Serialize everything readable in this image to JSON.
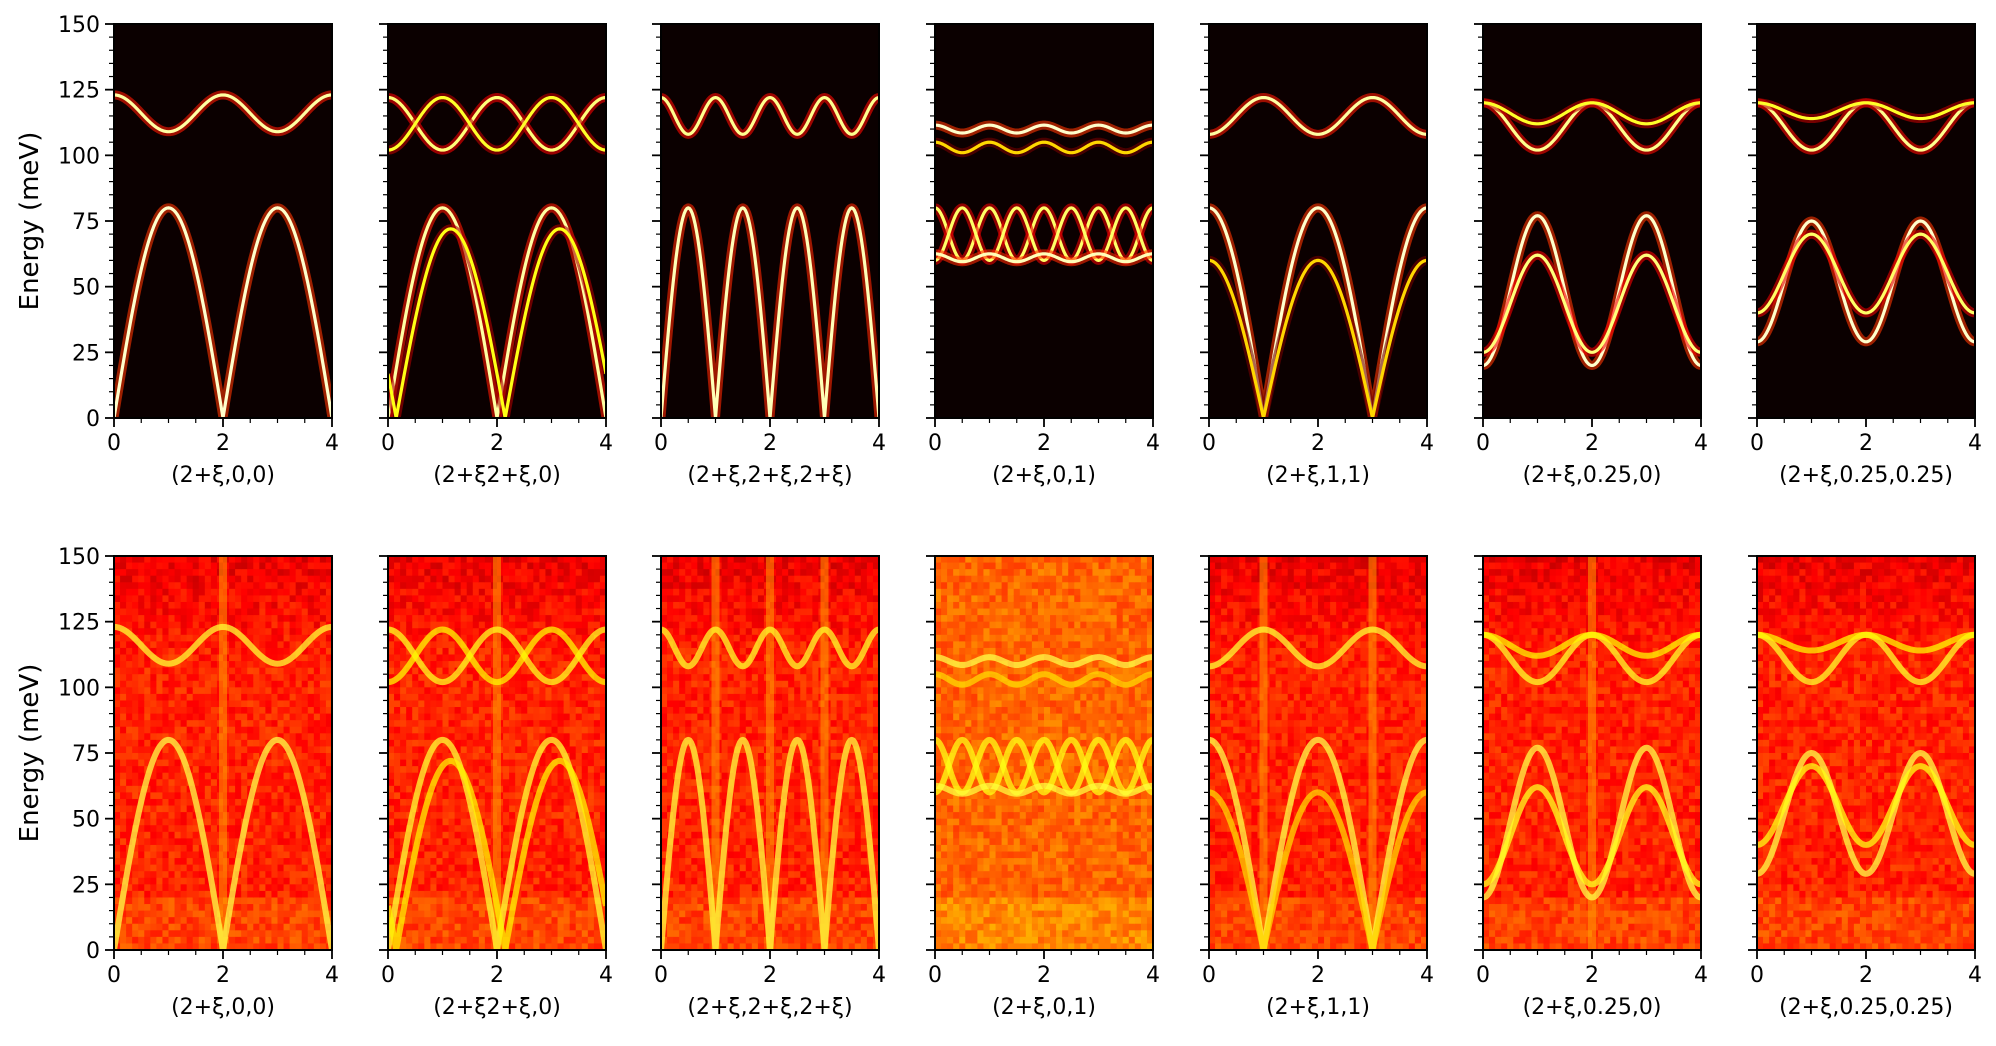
{
  "figure": {
    "ylabel": "Energy (meV)",
    "colors": {
      "background": "#0b0000",
      "mid": "#d21800",
      "hot": "#ff9a00",
      "peak": "#ffff60"
    }
  },
  "chart_data": {
    "type": "heatmap",
    "x_ticks": [
      "0",
      "2",
      "4"
    ],
    "y_ticks": [
      "0",
      "25",
      "50",
      "75",
      "100",
      "125",
      "150"
    ],
    "xlim": [
      0,
      4
    ],
    "ylim": [
      0,
      150
    ],
    "colormap": "hot",
    "rows": [
      {
        "kind": "simulated",
        "ylabel": "Energy (meV)"
      },
      {
        "kind": "measured",
        "ylabel": "Energy (meV)"
      }
    ],
    "panels": [
      {
        "xlabel": "(2+ξ,0,0)",
        "acoustic": [
          {
            "A": 80,
            "P": 2,
            "s": 0,
            "w": 1.0
          }
        ],
        "optical": [
          {
            "c": 116,
            "a": 7,
            "P": 2,
            "ph": 0,
            "w": 0.9
          }
        ],
        "vertical_lines": [
          2
        ]
      },
      {
        "xlabel": "(2+ξ2+ξ,0)",
        "acoustic": [
          {
            "A": 80,
            "P": 2,
            "s": 0,
            "w": 0.9
          },
          {
            "A": 72,
            "P": 2,
            "s": 0.15,
            "w": 0.55
          }
        ],
        "optical": [
          {
            "c": 112,
            "a": 10,
            "P": 2,
            "ph": 0,
            "w": 0.8
          },
          {
            "c": 112,
            "a": 10,
            "P": 2,
            "ph": 1,
            "w": 0.6
          }
        ],
        "vertical_lines": [
          2
        ]
      },
      {
        "xlabel": "(2+ξ,2+ξ,2+ξ)",
        "acoustic": [
          {
            "A": 80,
            "P": 1,
            "s": 0,
            "w": 0.95
          }
        ],
        "optical": [
          {
            "c": 115,
            "a": 7,
            "P": 1,
            "ph": 0,
            "w": 0.85
          }
        ],
        "vertical_lines": [
          1,
          2,
          3
        ]
      },
      {
        "xlabel": "(2+ξ,0,1)",
        "flat": [
          {
            "c": 110,
            "a": 1.5,
            "P": 1,
            "w": 1.0
          },
          {
            "c": 103,
            "a": 2,
            "P": 1,
            "w": 0.35
          },
          {
            "c": 61,
            "a": 1.5,
            "P": 1,
            "w": 0.95
          }
        ],
        "optical": [
          {
            "c": 70,
            "a": 10,
            "P": 1,
            "ph": 0,
            "w": 0.75
          },
          {
            "c": 70,
            "a": 10,
            "P": 1,
            "ph": 0.5,
            "w": 0.75
          }
        ],
        "vertical_lines": []
      },
      {
        "xlabel": "(2+ξ,1,1)",
        "acoustic": [
          {
            "A": 80,
            "P": 2,
            "s": 1,
            "w": 1.0
          },
          {
            "A": 60,
            "P": 2,
            "s": 1,
            "w": 0.35
          }
        ],
        "optical": [
          {
            "c": 115,
            "a": 7,
            "P": 2,
            "ph": 1,
            "w": 0.9
          }
        ],
        "vertical_lines": [
          1,
          3
        ]
      },
      {
        "xlabel": "(2+ξ,0.25,0)",
        "band": [
          {
            "lo": 20,
            "hi": 77,
            "w": 1.0
          },
          {
            "lo": 25,
            "hi": 62,
            "w": 0.8
          }
        ],
        "optical": [
          {
            "c": 111,
            "a": 9,
            "P": 2,
            "ph": 0,
            "w": 0.85
          },
          {
            "c": 116,
            "a": 4,
            "P": 2,
            "ph": 0,
            "w": 0.6
          }
        ],
        "vertical_lines": [
          2
        ]
      },
      {
        "xlabel": "(2+ξ,0.25,0.25)",
        "band": [
          {
            "lo": 29,
            "hi": 75,
            "w": 1.0
          },
          {
            "lo": 40,
            "hi": 70,
            "w": 0.75
          }
        ],
        "optical": [
          {
            "c": 111,
            "a": 9,
            "P": 2,
            "ph": 0,
            "w": 0.85
          },
          {
            "c": 117,
            "a": 3,
            "P": 2,
            "ph": 0,
            "w": 0.6
          }
        ],
        "vertical_lines": []
      }
    ]
  }
}
